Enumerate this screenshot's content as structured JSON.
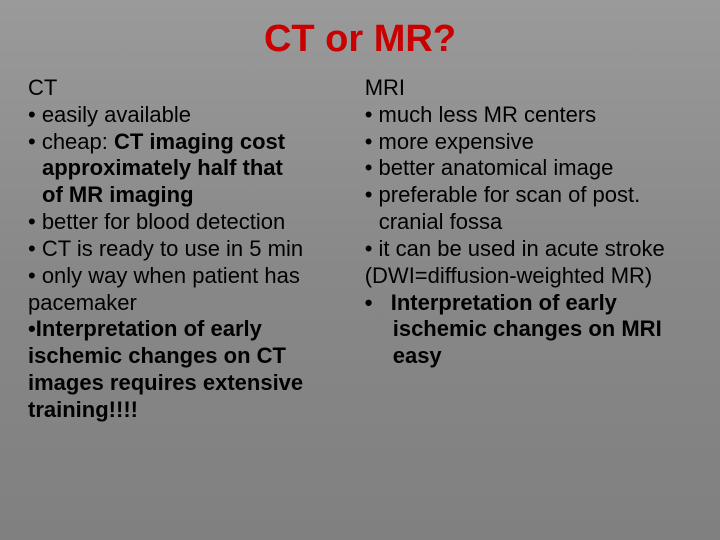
{
  "title": "CT or MR?",
  "left": {
    "heading": "CT",
    "l1": "• easily available",
    "l2a": "• cheap: ",
    "l2b": "CT imaging cost",
    "l3": "approximately half that",
    "l4": "of MR imaging",
    "l5": "• better for blood detection",
    "l6": "• CT is ready to use in 5 min",
    "l7": "• only way when patient has",
    "l8": "pacemaker",
    "l9": "•Interpretation of early",
    "l10": "ischemic changes on CT",
    "l11": "images requires extensive",
    "l12": "training!!!!"
  },
  "right": {
    "heading": "MRI",
    "r1": "• much less MR centers",
    "r2": "• more expensive",
    "r3": "• better anatomical image",
    "r4": "• preferable for scan of post.",
    "r5": "cranial fossa",
    "r6": "• it can be used in acute stroke",
    "r7": "(DWI=diffusion-weighted MR)",
    "r8": "•   Interpretation of early",
    "r9": "ischemic changes on MRI",
    "r10": "easy"
  },
  "colors": {
    "title": "#c80000",
    "text": "#000000",
    "bg_top": "#9a9a9a",
    "bg_bottom": "#808080"
  },
  "typography": {
    "title_fontsize": 38,
    "body_fontsize": 22,
    "font_family": "Arial"
  }
}
